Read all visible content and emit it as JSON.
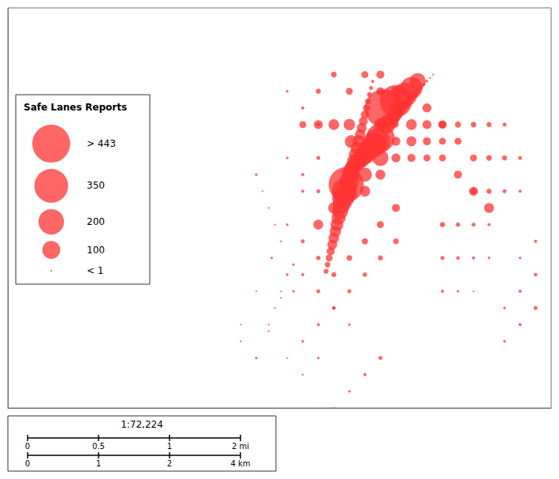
{
  "chart_data": {
    "type": "scatter",
    "color": "#FF3333",
    "xlim": [
      -122.53,
      -122.355
    ],
    "ylim": [
      37.695,
      37.815
    ],
    "tick_labels": false,
    "grid": false,
    "x": [
      -122.4194,
      -122.4089,
      -122.405,
      -122.402,
      -122.4,
      -122.398,
      -122.42,
      -122.4195,
      -122.419,
      -122.4185,
      -122.418,
      -122.4175,
      -122.417,
      -122.4165,
      -122.416,
      -122.4155,
      -122.415,
      -122.4145,
      -122.414,
      -122.4135,
      -122.413,
      -122.4125,
      -122.421,
      -122.4215,
      -122.422,
      -122.4225,
      -122.423,
      -122.4235,
      -122.424,
      -122.4245,
      -122.425,
      -122.4255,
      -122.426,
      -122.4265,
      -122.427,
      -122.4275,
      -122.41,
      -122.411,
      -122.412,
      -122.413,
      -122.414,
      -122.415,
      -122.416,
      -122.417,
      -122.418,
      -122.419,
      -122.42,
      -122.408,
      -122.407,
      -122.406,
      -122.405,
      -122.404,
      -122.403,
      -122.402,
      -122.401,
      -122.4,
      -122.399,
      -122.398,
      -122.397,
      -122.396,
      -122.395,
      -122.394,
      -122.393,
      -122.43,
      -122.435,
      -122.44,
      -122.445,
      -122.45,
      -122.455,
      -122.438,
      -122.442,
      -122.446,
      -122.41,
      -122.415,
      -122.42,
      -122.425,
      -122.43,
      -122.41,
      -122.415,
      -122.405,
      -122.39,
      -122.385,
      -122.38,
      -122.375,
      -122.385,
      -122.39,
      -122.395,
      -122.4,
      -122.405,
      -122.395,
      -122.39,
      -122.43,
      -122.435,
      -122.44,
      -122.43,
      -122.435,
      -122.44,
      -122.42,
      -122.425,
      -122.43,
      -122.435,
      -122.41,
      -122.405,
      -122.4,
      -122.395,
      -122.39,
      -122.395,
      -122.4,
      -122.405,
      -122.41,
      -122.415,
      -122.405,
      -122.41,
      -122.42,
      -122.425,
      -122.43,
      -122.385,
      -122.38,
      -122.375,
      -122.37,
      -122.38,
      -122.375,
      -122.37,
      -122.365,
      -122.38,
      -122.375,
      -122.37,
      -122.365,
      -122.45,
      -122.448,
      -122.446,
      -122.444,
      -122.442,
      -122.44,
      -122.442,
      -122.444,
      -122.446,
      -122.43,
      -122.435,
      -122.44,
      -122.41,
      -122.415,
      -122.42,
      -122.425,
      -122.43,
      -122.425,
      -122.42,
      -122.45,
      -122.455,
      -122.435,
      -122.438,
      -122.39,
      -122.385,
      -122.38,
      -122.375,
      -122.39,
      -122.385,
      -122.38,
      -122.375,
      -122.39,
      -122.385,
      -122.38,
      -122.405,
      -122.41,
      -122.415,
      -122.42,
      -122.425,
      -122.43,
      -122.435,
      -122.405,
      -122.41,
      -122.415,
      -122.42,
      -122.425,
      -122.36,
      -122.365,
      -122.37,
      -122.36,
      -122.365,
      -122.37,
      -122.36,
      -122.365,
      -122.43,
      -122.435
    ],
    "y": [
      37.7749,
      37.7849,
      37.787,
      37.789,
      37.791,
      37.793,
      37.763,
      37.765,
      37.767,
      37.769,
      37.771,
      37.773,
      37.775,
      37.777,
      37.779,
      37.781,
      37.783,
      37.785,
      37.787,
      37.789,
      37.791,
      37.793,
      37.762,
      37.76,
      37.758,
      37.756,
      37.754,
      37.752,
      37.75,
      37.748,
      37.746,
      37.744,
      37.742,
      37.74,
      37.738,
      37.736,
      37.776,
      37.775,
      37.774,
      37.773,
      37.772,
      37.771,
      37.77,
      37.769,
      37.768,
      37.767,
      37.766,
      37.78,
      37.781,
      37.782,
      37.783,
      37.784,
      37.785,
      37.786,
      37.787,
      37.788,
      37.789,
      37.79,
      37.791,
      37.792,
      37.793,
      37.794,
      37.795,
      37.77,
      37.76,
      37.75,
      37.74,
      37.73,
      37.72,
      37.738,
      37.728,
      37.718,
      37.77,
      37.765,
      37.76,
      37.755,
      37.75,
      37.79,
      37.795,
      37.78,
      37.77,
      37.765,
      37.76,
      37.755,
      37.775,
      37.78,
      37.785,
      37.775,
      37.775,
      37.775,
      37.775,
      37.78,
      37.785,
      37.79,
      37.76,
      37.765,
      37.77,
      37.78,
      37.78,
      37.78,
      37.78,
      37.78,
      37.785,
      37.78,
      37.78,
      37.78,
      37.77,
      37.77,
      37.77,
      37.765,
      37.76,
      37.79,
      37.795,
      37.79,
      37.795,
      37.79,
      37.78,
      37.78,
      37.78,
      37.78,
      37.77,
      37.77,
      37.77,
      37.77,
      37.76,
      37.76,
      37.76,
      37.76,
      37.765,
      37.76,
      37.755,
      37.75,
      37.745,
      37.735,
      37.73,
      37.725,
      37.72,
      37.72,
      37.715,
      37.71,
      37.71,
      37.705,
      37.7,
      37.695,
      37.73,
      37.725,
      37.72,
      37.71,
      37.715,
      37.735,
      37.73,
      37.75,
      37.75,
      37.75,
      37.75,
      37.74,
      37.74,
      37.74,
      37.74,
      37.73,
      37.73,
      37.73,
      37.755,
      37.75,
      37.745,
      37.74,
      37.735,
      37.74,
      37.745,
      37.745,
      37.74,
      37.735,
      37.73,
      37.725,
      37.725,
      37.72,
      37.715,
      37.735,
      37.73,
      37.725,
      37.745,
      37.74,
      37.71,
      37.705
    ],
    "sizes": [
      50,
      443,
      320,
      180,
      150,
      80,
      120,
      90,
      70,
      60,
      55,
      50,
      45,
      35,
      30,
      25,
      20,
      15,
      10,
      8,
      5,
      3,
      380,
      200,
      150,
      100,
      80,
      60,
      50,
      40,
      35,
      30,
      20,
      15,
      10,
      8,
      250,
      200,
      180,
      150,
      130,
      120,
      100,
      90,
      80,
      70,
      60,
      100,
      80,
      60,
      50,
      40,
      30,
      25,
      20,
      15,
      10,
      8,
      5,
      3,
      2,
      1,
      1,
      5,
      3,
      2,
      2,
      1,
      1,
      2,
      1,
      1,
      80,
      60,
      50,
      40,
      30,
      20,
      15,
      10,
      15,
      20,
      25,
      30,
      15,
      20,
      25,
      30,
      25,
      20,
      15,
      5,
      3,
      2,
      5,
      3,
      2,
      40,
      35,
      25,
      15,
      50,
      40,
      35,
      25,
      20,
      15,
      20,
      25,
      30,
      35,
      30,
      20,
      15,
      10,
      8,
      12,
      10,
      8,
      5,
      15,
      10,
      8,
      5,
      12,
      8,
      5,
      3,
      2,
      1,
      1,
      1,
      1,
      2,
      1,
      1,
      1,
      3,
      2,
      1,
      5,
      3,
      2,
      1,
      5,
      3,
      2,
      2,
      1,
      3,
      2,
      8,
      6,
      5,
      3,
      5,
      4,
      3,
      2,
      3,
      2,
      1,
      20,
      15,
      12,
      10,
      8,
      6,
      5,
      10,
      8,
      6,
      5,
      4,
      5,
      3,
      2,
      4,
      3,
      2,
      3,
      2,
      2,
      1
    ],
    "size_legend": {
      "title": "Safe Lanes Reports",
      "sizes": [
        443,
        350,
        200,
        100,
        1
      ],
      "labels": [
        "> 443",
        "350",
        "200",
        "100",
        "< 1"
      ]
    },
    "scale_bar": {
      "text": "1:72,224",
      "miles": [
        "0",
        "0.5",
        "1",
        "2 mi"
      ],
      "km": [
        "0",
        "1",
        "2",
        "4 km"
      ]
    }
  }
}
